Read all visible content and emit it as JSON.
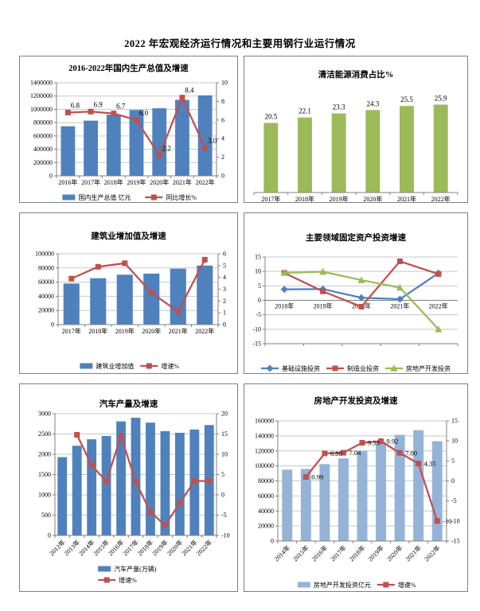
{
  "page": {
    "title": "2022 年宏观经济运行情况和主要用钢行业运行情况"
  },
  "colors": {
    "bar_blue": "#4F81BD",
    "bar_light_blue": "#95B3D7",
    "bar_green": "#9BBB59",
    "line_red": "#C0504D",
    "line_blue": "#4F81BD",
    "line_green": "#9BBB59",
    "grid": "#C8C8C8",
    "axis": "#808080"
  },
  "chart_data": [
    {
      "id": "gdp",
      "type": "bar",
      "title": "2016-2022年国内生产总值及增速",
      "categories": [
        "2016年",
        "2017年",
        "2018年",
        "2019年",
        "2020年",
        "2021年",
        "2022年"
      ],
      "bars": {
        "name": "国内生产总值   亿元",
        "color": "#4F81BD",
        "axis": "left",
        "values": [
          745000,
          830000,
          920000,
          990000,
          1016000,
          1143000,
          1210000
        ]
      },
      "lines": [
        {
          "name": "同比增长%",
          "color": "#C0504D",
          "marker": "square",
          "axis": "right",
          "values": [
            6.8,
            6.9,
            6.7,
            6.0,
            2.2,
            8.4,
            3.0
          ],
          "labels": [
            "6.8",
            "6.9",
            "6.7",
            "6.0",
            "2.2",
            "8.4",
            "3.0"
          ]
        }
      ],
      "left_axis": {
        "min": 0,
        "max": 1400000,
        "step": 200000
      },
      "right_axis": {
        "min": 0,
        "max": 10,
        "step": 2
      },
      "grid": "left",
      "legend_position": "bottom-horizontal"
    },
    {
      "id": "clean",
      "type": "bar",
      "title": "清洁能源消费占比%",
      "categories": [
        "2017年",
        "2018年",
        "2019年",
        "2020年",
        "2021年",
        "2022年"
      ],
      "bars": {
        "name": "清洁能源消费占比%",
        "color": "#9BBB59",
        "axis": "left",
        "values": [
          20.5,
          22.1,
          23.3,
          24.3,
          25.5,
          25.9
        ],
        "labels": [
          "20.5",
          "22.1",
          "23.3",
          "24.3",
          "25.5",
          "25.9"
        ]
      },
      "left_axis": {
        "min": 0,
        "max": 30,
        "step": 30
      },
      "grid": false,
      "legend_position": "none"
    },
    {
      "id": "constr",
      "type": "bar",
      "title": "建筑业增加值及增速",
      "categories": [
        "2017年",
        "2018年",
        "2019年",
        "2020年",
        "2021年",
        "2022年"
      ],
      "bars": {
        "name": "建筑业增加值",
        "color": "#4F81BD",
        "axis": "left",
        "values": [
          58000,
          65500,
          70500,
          72000,
          79000,
          83400
        ]
      },
      "lines": [
        {
          "name": "增速%",
          "color": "#C0504D",
          "marker": "square",
          "axis": "right",
          "values": [
            3.9,
            4.9,
            5.2,
            2.7,
            1.1,
            5.5
          ]
        }
      ],
      "left_axis": {
        "min": 0,
        "max": 100000,
        "step": 20000
      },
      "right_axis": {
        "min": 0,
        "max": 6,
        "step": 1
      },
      "grid": "left",
      "legend_position": "bottom-horizontal"
    },
    {
      "id": "fai",
      "type": "line",
      "title": "主要领域固定资产投资增速",
      "categories": [
        "2018年",
        "2019年",
        "2020年",
        "2021年",
        "2022年"
      ],
      "lines": [
        {
          "name": "基础设施投资",
          "color": "#4F81BD",
          "marker": "diamond",
          "axis": "left",
          "values": [
            3.8,
            3.9,
            0.9,
            0.4,
            9.4
          ]
        },
        {
          "name": "制造业投资",
          "color": "#C0504D",
          "marker": "square",
          "axis": "left",
          "values": [
            9.5,
            3.1,
            -2.2,
            13.5,
            9.1
          ]
        },
        {
          "name": "房地产开发投资",
          "color": "#9BBB59",
          "marker": "triangle",
          "axis": "left",
          "values": [
            9.5,
            9.9,
            7.0,
            4.4,
            -10.0
          ]
        }
      ],
      "left_axis": {
        "min": -15,
        "max": 15,
        "step": 5
      },
      "grid": "left",
      "legend_position": "bottom-horizontal"
    },
    {
      "id": "auto",
      "type": "bar",
      "title": "汽车产量及增速",
      "categories": [
        "2012年",
        "2013年",
        "2014年",
        "2015年",
        "2016年",
        "2017年",
        "2018年",
        "2019年",
        "2020年",
        "2021年",
        "2022年"
      ],
      "bars": {
        "name": "汽车产量(万辆)",
        "color": "#4F81BD",
        "axis": "left",
        "values": [
          1930,
          2210,
          2370,
          2450,
          2810,
          2900,
          2780,
          2570,
          2530,
          2610,
          2720
        ]
      },
      "lines": [
        {
          "name": "增速%",
          "color": "#C0504D",
          "marker": "square",
          "axis": "right",
          "values": [
            null,
            14.8,
            7.3,
            3.3,
            14.5,
            3.2,
            -4.2,
            -7.5,
            -2.0,
            3.4,
            3.4
          ]
        }
      ],
      "left_axis": {
        "min": 0,
        "max": 3000,
        "step": 500
      },
      "right_axis": {
        "min": -10,
        "max": 20,
        "step": 5
      },
      "grid": "left",
      "legend_position": "bottom-vertical"
    },
    {
      "id": "re",
      "type": "bar",
      "title": "房地产开发投资及增速",
      "categories": [
        "2014年",
        "2015年",
        "2016年",
        "2017年",
        "2018年",
        "2019年",
        "2020年",
        "2021年",
        "2022年"
      ],
      "bars": {
        "name": "房地产开发投资亿元",
        "color": "#95B3D7",
        "axis": "left",
        "values": [
          95000,
          96000,
          102500,
          110000,
          120000,
          132000,
          141400,
          147600,
          132900
        ]
      },
      "lines": [
        {
          "name": "增速%",
          "color": "#C0504D",
          "marker": "square",
          "axis": "right",
          "values": [
            null,
            0.99,
            6.88,
            7.04,
            9.53,
            9.92,
            7.0,
            4.35,
            -10
          ],
          "labels": [
            "",
            "0.99",
            "6.88",
            "7.04",
            "9.53",
            "9.92",
            "7.00",
            "4.35",
            "-10"
          ]
        }
      ],
      "left_axis": {
        "min": 0,
        "max": 160000,
        "step": 20000
      },
      "right_axis": {
        "min": -15,
        "max": 15,
        "step": 5
      },
      "grid": "left",
      "legend_position": "bottom-horizontal"
    }
  ]
}
